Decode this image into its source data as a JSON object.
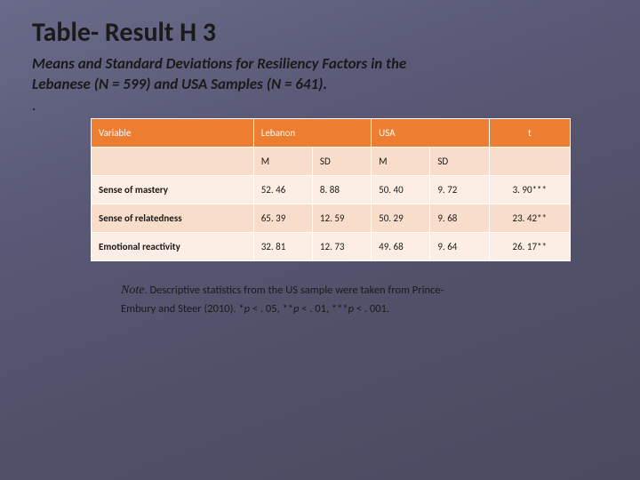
{
  "title": "Table- Result H 3",
  "subtitle_line1": "Means and Standard Deviations for Resiliency Factors in the",
  "subtitle_line2": " Lebanese (N = 599) and USA Samples (N = 641).",
  "dot": ".",
  "table": {
    "type": "table",
    "header_bg": "#ed7d31",
    "subheader_bg": "#f8ddca",
    "row_alt_a_bg": "#fceee4",
    "row_alt_b_bg": "#f8ddca",
    "border_color": "#ffffff",
    "header_text_color": "#ffffff",
    "body_text_color": "#1a1a1a",
    "font_size": 11,
    "columns": [
      "Variable",
      "Lebanon",
      "USA",
      "t"
    ],
    "subcolumns": {
      "lebanon": [
        "M",
        "SD"
      ],
      "usa": [
        "M",
        "SD"
      ]
    },
    "rows": [
      {
        "variable": "Sense of mastery",
        "leb_m": "52. 46",
        "leb_sd": "8. 88",
        "usa_m": "50. 40",
        "usa_sd": "9. 72",
        "t": "3. 90***"
      },
      {
        "variable": "Sense of relatedness",
        "leb_m": "65. 39",
        "leb_sd": "12. 59",
        "usa_m": "50. 29",
        "usa_sd": "9. 68",
        "t": "23. 42**"
      },
      {
        "variable": "Emotional reactivity",
        "leb_m": "32. 81",
        "leb_sd": "12. 73",
        "usa_m": "49. 68",
        "usa_sd": "9. 64",
        "t": "26. 17**"
      }
    ]
  },
  "note": {
    "label": "Note",
    "period": ". ",
    "text1": "Descriptive statistics from the US sample were taken from Prince-",
    "text2": "Embury and Steer (2010). *",
    "p1": "p",
    "sig1": " < . 05, **",
    "p2": "p",
    "sig2": " < . 01, ***",
    "p3": "p",
    "sig3": " < . 001."
  },
  "background_gradient": [
    "#6a6a8a",
    "#4a4a60"
  ]
}
